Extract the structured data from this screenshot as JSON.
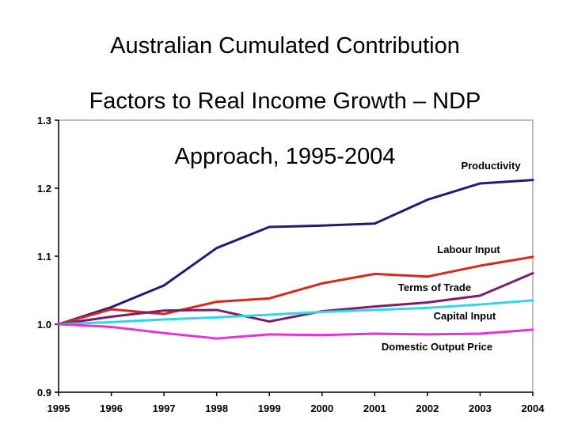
{
  "title": "Australian Cumulated Contribution Factors to Real Income Growth – NDP Approach, 1995-2004",
  "title_lines": [
    "Australian Cumulated Contribution",
    "Factors to Real Income Growth – NDP",
    "Approach, 1995-2004"
  ],
  "chart_data": {
    "type": "line",
    "title": "Australian Cumulated Contribution Factors to Real Income Growth – NDP Approach, 1995-2004",
    "xlabel": "",
    "ylabel": "",
    "x": [
      "1995",
      "1996",
      "1997",
      "1998",
      "1999",
      "2000",
      "2001",
      "2002",
      "2003",
      "2004"
    ],
    "ylim": [
      0.9,
      1.3
    ],
    "yticks": [
      "0.9",
      "1.0",
      "1.1",
      "1.2",
      "1.3"
    ],
    "grid": false,
    "legend": "inline labels",
    "series": [
      {
        "name": "Productivity",
        "color": "#1f1f6e",
        "values": [
          1.0,
          1.025,
          1.057,
          1.112,
          1.143,
          1.145,
          1.148,
          1.183,
          1.207,
          1.212
        ]
      },
      {
        "name": "Labour Input",
        "color": "#d42a1c",
        "values": [
          1.0,
          1.022,
          1.015,
          1.033,
          1.038,
          1.06,
          1.074,
          1.07,
          1.086,
          1.099
        ]
      },
      {
        "name": "Terms of Trade",
        "color": "#7a1f6e",
        "values": [
          1.0,
          1.011,
          1.02,
          1.021,
          1.004,
          1.019,
          1.026,
          1.032,
          1.042,
          1.075
        ]
      },
      {
        "name": "Capital Input",
        "color": "#33d6e6",
        "values": [
          1.0,
          1.003,
          1.007,
          1.01,
          1.014,
          1.018,
          1.021,
          1.024,
          1.029,
          1.035
        ]
      },
      {
        "name": "Domestic Output Price",
        "color": "#e633d6",
        "values": [
          1.0,
          0.996,
          0.987,
          0.979,
          0.985,
          0.984,
          0.986,
          0.985,
          0.986,
          0.992
        ]
      }
    ]
  }
}
